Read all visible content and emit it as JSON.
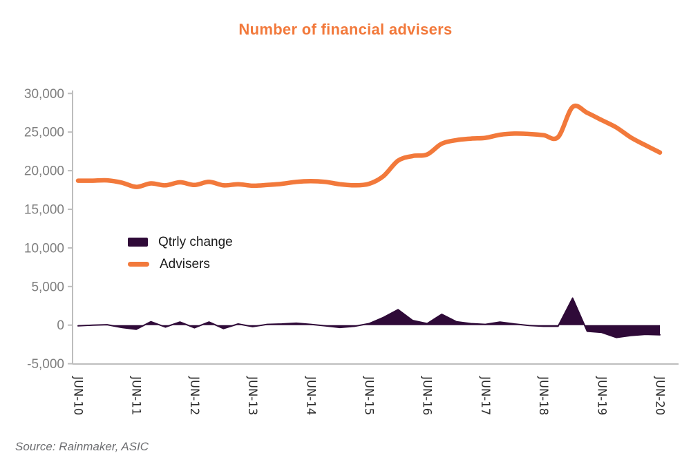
{
  "chart_data": {
    "type": "combo",
    "title": "Number of financial advisers",
    "source": "Source: Rainmaker, ASIC",
    "grid": false,
    "legend_position": "inside-left-middle",
    "ylim": [
      -5000,
      30000
    ],
    "y_ticks": [
      30000,
      25000,
      20000,
      15000,
      10000,
      5000,
      0,
      -5000
    ],
    "y_tick_labels": [
      "30,000",
      "25,000",
      "20,000",
      "15,000",
      "10,000",
      "5,000",
      "0",
      "-5,000"
    ],
    "x_tick_labels": [
      "JUN-10",
      "JUN-11",
      "JUN-12",
      "JUN-13",
      "JUN-14",
      "JUN-15",
      "JUN-16",
      "JUN-17",
      "JUN-18",
      "JUN-19",
      "JUN-20"
    ],
    "categories": [
      "JUN-10",
      "SEP-10",
      "DEC-10",
      "MAR-11",
      "JUN-11",
      "SEP-11",
      "DEC-11",
      "MAR-12",
      "JUN-12",
      "SEP-12",
      "DEC-12",
      "MAR-13",
      "JUN-13",
      "SEP-13",
      "DEC-13",
      "MAR-14",
      "JUN-14",
      "SEP-14",
      "DEC-14",
      "MAR-15",
      "JUN-15",
      "SEP-15",
      "DEC-15",
      "MAR-16",
      "JUN-16",
      "SEP-16",
      "DEC-16",
      "MAR-17",
      "JUN-17",
      "SEP-17",
      "DEC-17",
      "MAR-18",
      "JUN-18",
      "SEP-18",
      "DEC-18",
      "MAR-19",
      "JUN-19",
      "SEP-19",
      "DEC-19",
      "MAR-20",
      "JUN-20"
    ],
    "series": [
      {
        "name": "Qtrly change",
        "type": "area",
        "color": "#2F0A38",
        "values": [
          -100,
          0,
          50,
          -300,
          -550,
          450,
          -250,
          400,
          -350,
          400,
          -450,
          150,
          -200,
          100,
          150,
          250,
          100,
          -100,
          -300,
          -150,
          200,
          1000,
          2000,
          600,
          200,
          1400,
          450,
          200,
          100,
          400,
          150,
          -50,
          -150,
          -150,
          3500,
          -800,
          -950,
          -1600,
          -1350,
          -1200,
          -1250
        ]
      },
      {
        "name": "Advisers",
        "type": "line",
        "color": "#F2793B",
        "values": [
          18700,
          18700,
          18750,
          18450,
          17900,
          18350,
          18100,
          18500,
          18150,
          18550,
          18100,
          18250,
          18050,
          18150,
          18300,
          18550,
          18650,
          18550,
          18250,
          18100,
          18300,
          19300,
          21300,
          21900,
          22100,
          23500,
          23950,
          24150,
          24250,
          24650,
          24800,
          24750,
          24600,
          24350,
          28250,
          27500,
          26550,
          25600,
          24300,
          23300,
          22350
        ]
      }
    ],
    "axis_color": "#BDBDBD",
    "y_label_color": "#7F7F7F",
    "x_label_color": "#2E2E2E",
    "title_color": "#F2793B"
  }
}
